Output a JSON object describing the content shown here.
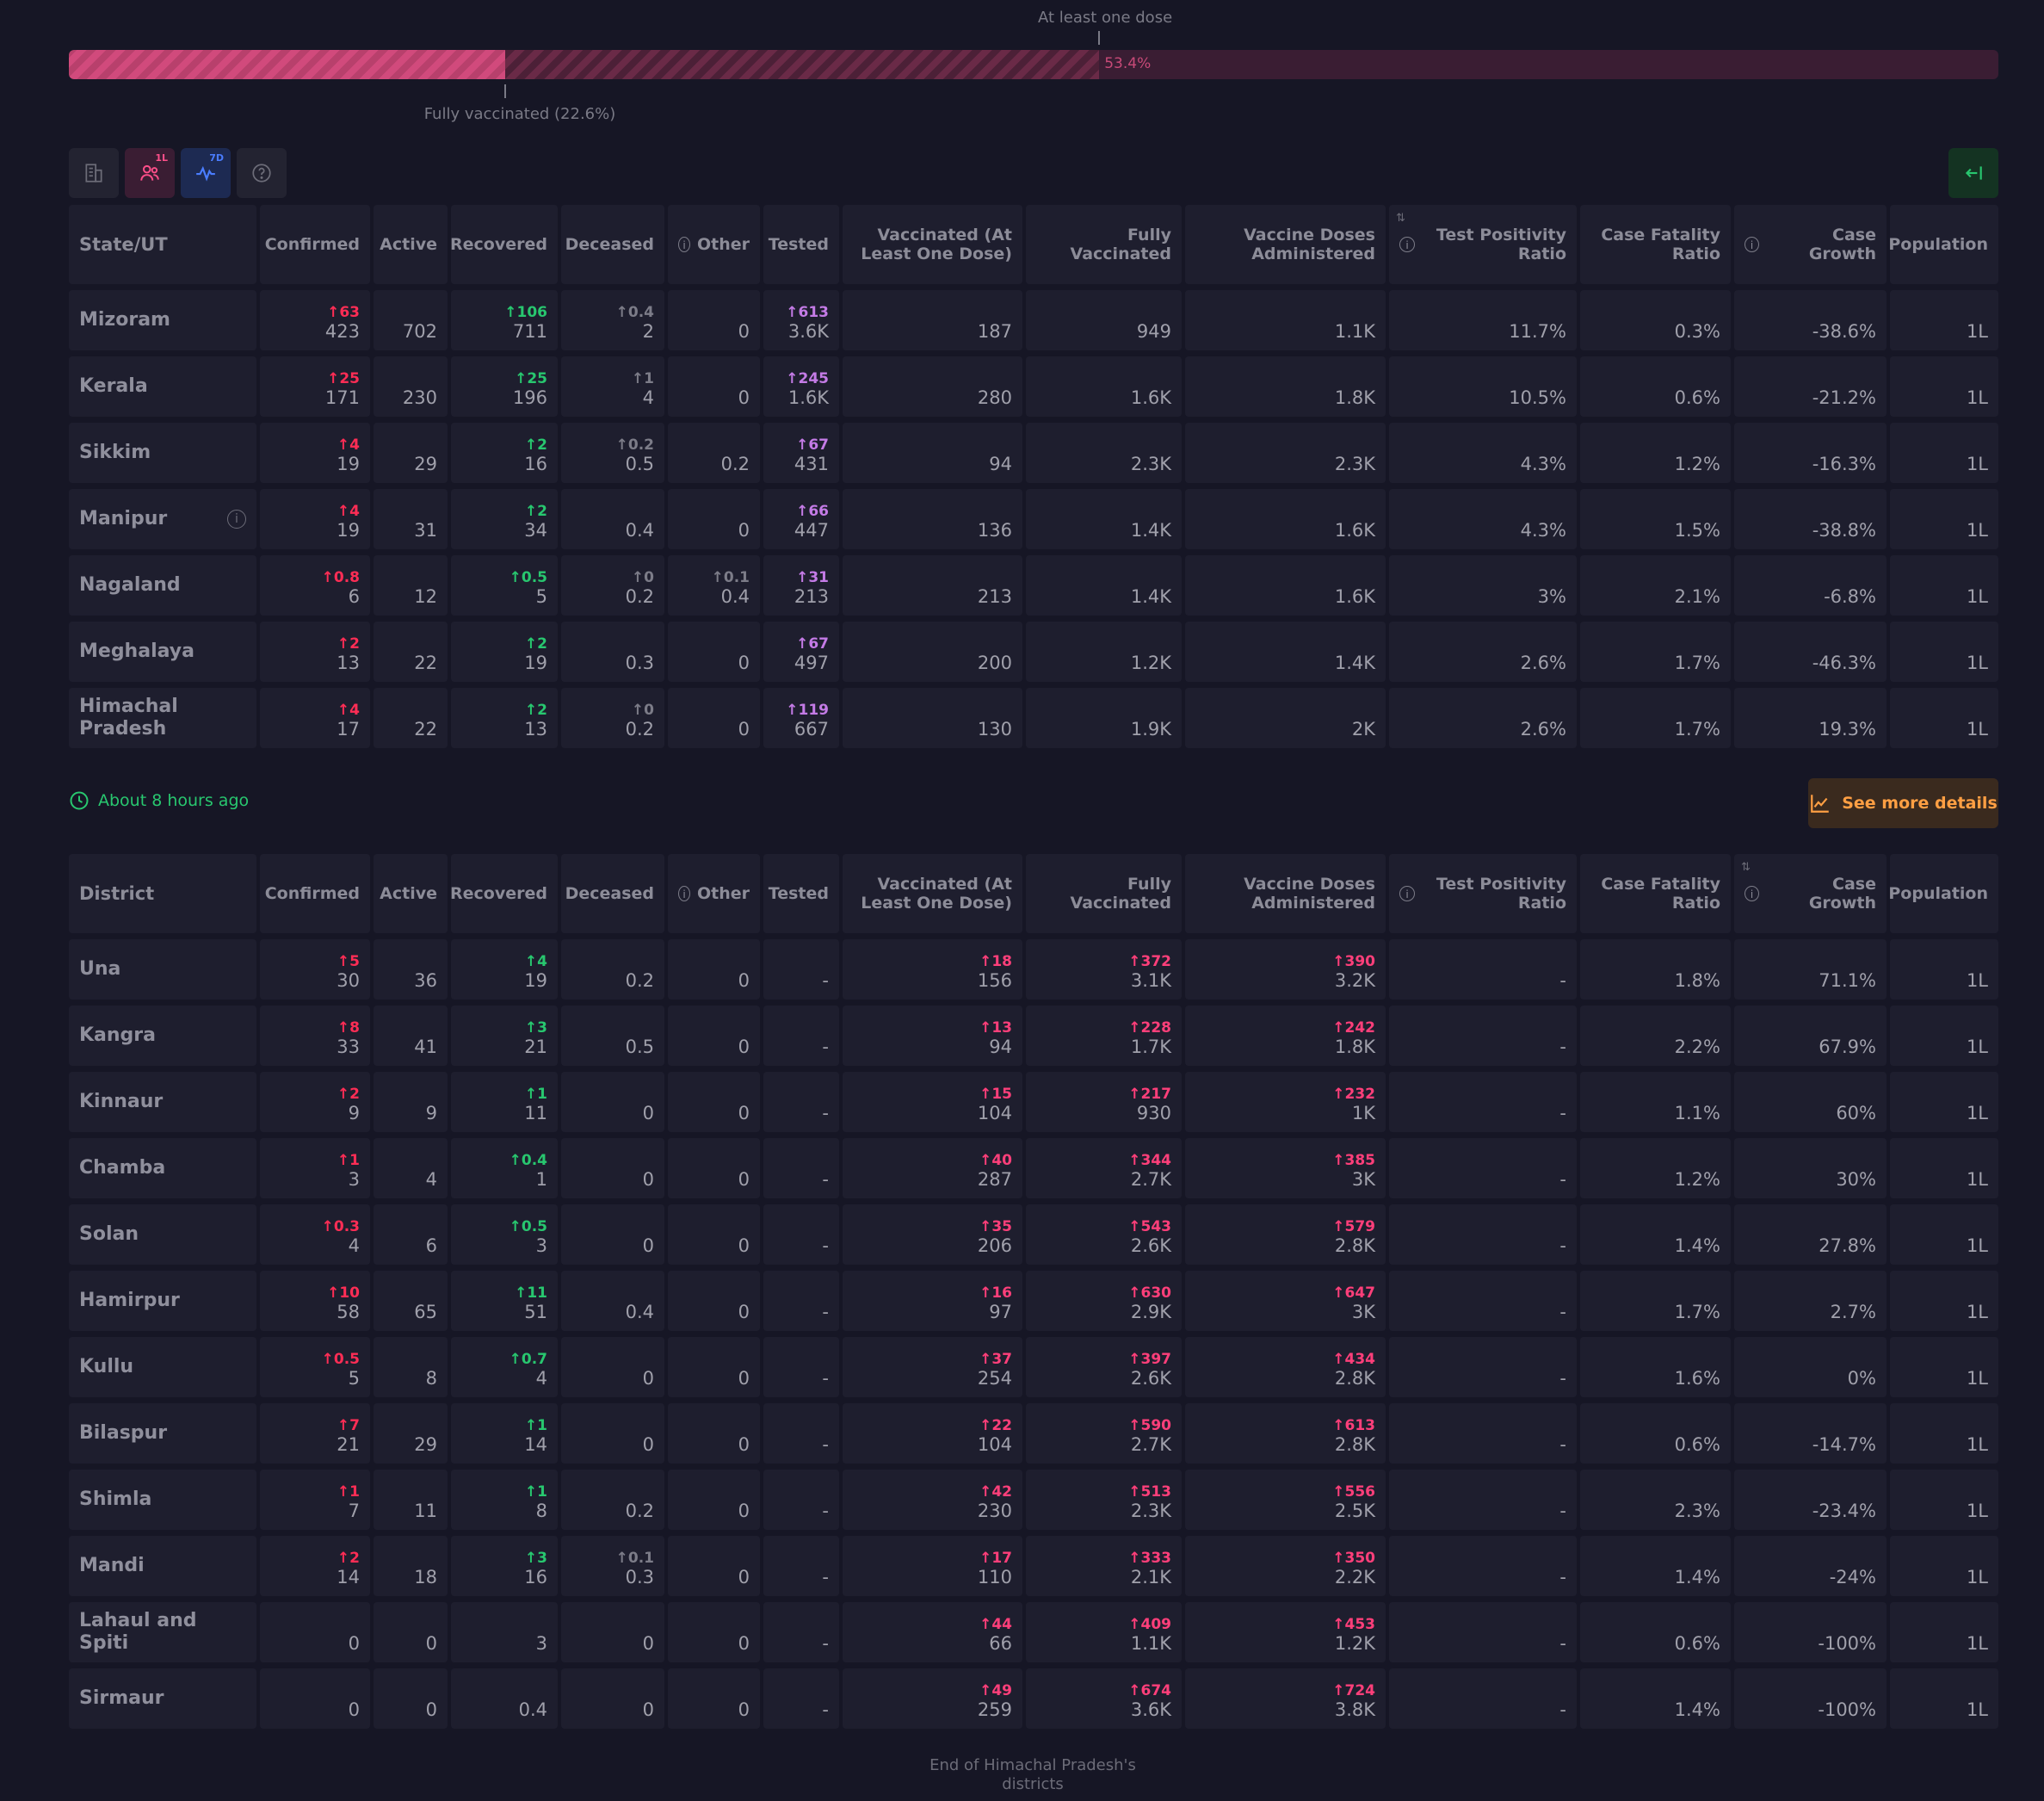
{
  "vaccination": {
    "at_least_one_label": "At least one dose",
    "at_least_one_pct_label": "53.4%",
    "at_least_one_fraction": 0.534,
    "fully_label": "Fully vaccinated (22.6%)",
    "fully_fraction": 0.226
  },
  "toolbar": {
    "population_badge": "1L",
    "trend_badge": "7D"
  },
  "colors": {
    "confirmed": "#ff2d55",
    "recovered": "#28c76f",
    "tested": "#c47be6",
    "vaccinated": "#ff3f7a",
    "background": "#161625"
  },
  "states_table": {
    "columns": [
      "State/UT",
      "Confirmed",
      "Active",
      "Recovered",
      "Deceased",
      "Other",
      "Tested",
      "Vaccinated (At Least One Dose)",
      "Fully Vaccinated",
      "Vaccine Doses Administered",
      "Test Positivity Ratio",
      "Case Fatality Ratio",
      "Case Growth",
      "Population"
    ],
    "rows": [
      {
        "name": "Mizoram",
        "cells": [
          {
            "d": "↑63",
            "v": "423"
          },
          {
            "v": "702"
          },
          {
            "d": "↑106",
            "v": "711"
          },
          {
            "d": "↑0.4",
            "v": "2"
          },
          {
            "v": "0"
          },
          {
            "d": "↑613",
            "v": "3.6K"
          },
          {
            "v": "187"
          },
          {
            "v": "949"
          },
          {
            "v": "1.1K"
          },
          {
            "v": "11.7%"
          },
          {
            "v": "0.3%"
          },
          {
            "v": "-38.6%"
          },
          {
            "v": "1L"
          }
        ]
      },
      {
        "name": "Kerala",
        "cells": [
          {
            "d": "↑25",
            "v": "171"
          },
          {
            "v": "230"
          },
          {
            "d": "↑25",
            "v": "196"
          },
          {
            "d": "↑1",
            "v": "4"
          },
          {
            "v": "0"
          },
          {
            "d": "↑245",
            "v": "1.6K"
          },
          {
            "v": "280"
          },
          {
            "v": "1.6K"
          },
          {
            "v": "1.8K"
          },
          {
            "v": "10.5%"
          },
          {
            "v": "0.6%"
          },
          {
            "v": "-21.2%"
          },
          {
            "v": "1L"
          }
        ]
      },
      {
        "name": "Sikkim",
        "cells": [
          {
            "d": "↑4",
            "v": "19"
          },
          {
            "v": "29"
          },
          {
            "d": "↑2",
            "v": "16"
          },
          {
            "d": "↑0.2",
            "v": "0.5"
          },
          {
            "v": "0.2"
          },
          {
            "d": "↑67",
            "v": "431"
          },
          {
            "v": "94"
          },
          {
            "v": "2.3K"
          },
          {
            "v": "2.3K"
          },
          {
            "v": "4.3%"
          },
          {
            "v": "1.2%"
          },
          {
            "v": "-16.3%"
          },
          {
            "v": "1L"
          }
        ]
      },
      {
        "name": "Manipur",
        "info": true,
        "cells": [
          {
            "d": "↑4",
            "v": "19"
          },
          {
            "v": "31"
          },
          {
            "d": "↑2",
            "v": "34"
          },
          {
            "v": "0.4"
          },
          {
            "v": "0"
          },
          {
            "d": "↑66",
            "v": "447"
          },
          {
            "v": "136"
          },
          {
            "v": "1.4K"
          },
          {
            "v": "1.6K"
          },
          {
            "v": "4.3%"
          },
          {
            "v": "1.5%"
          },
          {
            "v": "-38.8%"
          },
          {
            "v": "1L"
          }
        ]
      },
      {
        "name": "Nagaland",
        "cells": [
          {
            "d": "↑0.8",
            "v": "6"
          },
          {
            "v": "12"
          },
          {
            "d": "↑0.5",
            "v": "5"
          },
          {
            "d": "↑0",
            "v": "0.2"
          },
          {
            "d": "↑0.1",
            "v": "0.4"
          },
          {
            "d": "↑31",
            "v": "213"
          },
          {
            "v": "213"
          },
          {
            "v": "1.4K"
          },
          {
            "v": "1.6K"
          },
          {
            "v": "3%"
          },
          {
            "v": "2.1%"
          },
          {
            "v": "-6.8%"
          },
          {
            "v": "1L"
          }
        ]
      },
      {
        "name": "Meghalaya",
        "cells": [
          {
            "d": "↑2",
            "v": "13"
          },
          {
            "v": "22"
          },
          {
            "d": "↑2",
            "v": "19"
          },
          {
            "v": "0.3"
          },
          {
            "v": "0"
          },
          {
            "d": "↑67",
            "v": "497"
          },
          {
            "v": "200"
          },
          {
            "v": "1.2K"
          },
          {
            "v": "1.4K"
          },
          {
            "v": "2.6%"
          },
          {
            "v": "1.7%"
          },
          {
            "v": "-46.3%"
          },
          {
            "v": "1L"
          }
        ]
      },
      {
        "name": "Himachal Pradesh",
        "cells": [
          {
            "d": "↑4",
            "v": "17"
          },
          {
            "v": "22"
          },
          {
            "d": "↑2",
            "v": "13"
          },
          {
            "d": "↑0",
            "v": "0.2"
          },
          {
            "v": "0"
          },
          {
            "d": "↑119",
            "v": "667"
          },
          {
            "v": "130"
          },
          {
            "v": "1.9K"
          },
          {
            "v": "2K"
          },
          {
            "v": "2.6%"
          },
          {
            "v": "1.7%"
          },
          {
            "v": "19.3%"
          },
          {
            "v": "1L"
          }
        ]
      }
    ]
  },
  "updated": "About 8 hours ago",
  "see_more": "See more details",
  "districts_table": {
    "columns": [
      "District",
      "Confirmed",
      "Active",
      "Recovered",
      "Deceased",
      "Other",
      "Tested",
      "Vaccinated (At Least One Dose)",
      "Fully Vaccinated",
      "Vaccine Doses Administered",
      "Test Positivity Ratio",
      "Case Fatality Ratio",
      "Case Growth",
      "Population"
    ],
    "rows": [
      {
        "name": "Una",
        "cells": [
          {
            "d": "↑5",
            "v": "30"
          },
          {
            "v": "36"
          },
          {
            "d": "↑4",
            "v": "19"
          },
          {
            "v": "0.2"
          },
          {
            "v": "0"
          },
          {
            "v": "-"
          },
          {
            "d": "↑18",
            "v": "156"
          },
          {
            "d": "↑372",
            "v": "3.1K"
          },
          {
            "d": "↑390",
            "v": "3.2K"
          },
          {
            "v": "-"
          },
          {
            "v": "1.8%"
          },
          {
            "v": "71.1%"
          },
          {
            "v": "1L"
          }
        ]
      },
      {
        "name": "Kangra",
        "cells": [
          {
            "d": "↑8",
            "v": "33"
          },
          {
            "v": "41"
          },
          {
            "d": "↑3",
            "v": "21"
          },
          {
            "v": "0.5"
          },
          {
            "v": "0"
          },
          {
            "v": "-"
          },
          {
            "d": "↑13",
            "v": "94"
          },
          {
            "d": "↑228",
            "v": "1.7K"
          },
          {
            "d": "↑242",
            "v": "1.8K"
          },
          {
            "v": "-"
          },
          {
            "v": "2.2%"
          },
          {
            "v": "67.9%"
          },
          {
            "v": "1L"
          }
        ]
      },
      {
        "name": "Kinnaur",
        "cells": [
          {
            "d": "↑2",
            "v": "9"
          },
          {
            "v": "9"
          },
          {
            "d": "↑1",
            "v": "11"
          },
          {
            "v": "0"
          },
          {
            "v": "0"
          },
          {
            "v": "-"
          },
          {
            "d": "↑15",
            "v": "104"
          },
          {
            "d": "↑217",
            "v": "930"
          },
          {
            "d": "↑232",
            "v": "1K"
          },
          {
            "v": "-"
          },
          {
            "v": "1.1%"
          },
          {
            "v": "60%"
          },
          {
            "v": "1L"
          }
        ]
      },
      {
        "name": "Chamba",
        "cells": [
          {
            "d": "↑1",
            "v": "3"
          },
          {
            "v": "4"
          },
          {
            "d": "↑0.4",
            "v": "1"
          },
          {
            "v": "0"
          },
          {
            "v": "0"
          },
          {
            "v": "-"
          },
          {
            "d": "↑40",
            "v": "287"
          },
          {
            "d": "↑344",
            "v": "2.7K"
          },
          {
            "d": "↑385",
            "v": "3K"
          },
          {
            "v": "-"
          },
          {
            "v": "1.2%"
          },
          {
            "v": "30%"
          },
          {
            "v": "1L"
          }
        ]
      },
      {
        "name": "Solan",
        "cells": [
          {
            "d": "↑0.3",
            "v": "4"
          },
          {
            "v": "6"
          },
          {
            "d": "↑0.5",
            "v": "3"
          },
          {
            "v": "0"
          },
          {
            "v": "0"
          },
          {
            "v": "-"
          },
          {
            "d": "↑35",
            "v": "206"
          },
          {
            "d": "↑543",
            "v": "2.6K"
          },
          {
            "d": "↑579",
            "v": "2.8K"
          },
          {
            "v": "-"
          },
          {
            "v": "1.4%"
          },
          {
            "v": "27.8%"
          },
          {
            "v": "1L"
          }
        ]
      },
      {
        "name": "Hamirpur",
        "cells": [
          {
            "d": "↑10",
            "v": "58"
          },
          {
            "v": "65"
          },
          {
            "d": "↑11",
            "v": "51"
          },
          {
            "v": "0.4"
          },
          {
            "v": "0"
          },
          {
            "v": "-"
          },
          {
            "d": "↑16",
            "v": "97"
          },
          {
            "d": "↑630",
            "v": "2.9K"
          },
          {
            "d": "↑647",
            "v": "3K"
          },
          {
            "v": "-"
          },
          {
            "v": "1.7%"
          },
          {
            "v": "2.7%"
          },
          {
            "v": "1L"
          }
        ]
      },
      {
        "name": "Kullu",
        "cells": [
          {
            "d": "↑0.5",
            "v": "5"
          },
          {
            "v": "8"
          },
          {
            "d": "↑0.7",
            "v": "4"
          },
          {
            "v": "0"
          },
          {
            "v": "0"
          },
          {
            "v": "-"
          },
          {
            "d": "↑37",
            "v": "254"
          },
          {
            "d": "↑397",
            "v": "2.6K"
          },
          {
            "d": "↑434",
            "v": "2.8K"
          },
          {
            "v": "-"
          },
          {
            "v": "1.6%"
          },
          {
            "v": "0%"
          },
          {
            "v": "1L"
          }
        ]
      },
      {
        "name": "Bilaspur",
        "cells": [
          {
            "d": "↑7",
            "v": "21"
          },
          {
            "v": "29"
          },
          {
            "d": "↑1",
            "v": "14"
          },
          {
            "v": "0"
          },
          {
            "v": "0"
          },
          {
            "v": "-"
          },
          {
            "d": "↑22",
            "v": "104"
          },
          {
            "d": "↑590",
            "v": "2.7K"
          },
          {
            "d": "↑613",
            "v": "2.8K"
          },
          {
            "v": "-"
          },
          {
            "v": "0.6%"
          },
          {
            "v": "-14.7%"
          },
          {
            "v": "1L"
          }
        ]
      },
      {
        "name": "Shimla",
        "cells": [
          {
            "d": "↑1",
            "v": "7"
          },
          {
            "v": "11"
          },
          {
            "d": "↑1",
            "v": "8"
          },
          {
            "v": "0.2"
          },
          {
            "v": "0"
          },
          {
            "v": "-"
          },
          {
            "d": "↑42",
            "v": "230"
          },
          {
            "d": "↑513",
            "v": "2.3K"
          },
          {
            "d": "↑556",
            "v": "2.5K"
          },
          {
            "v": "-"
          },
          {
            "v": "2.3%"
          },
          {
            "v": "-23.4%"
          },
          {
            "v": "1L"
          }
        ]
      },
      {
        "name": "Mandi",
        "cells": [
          {
            "d": "↑2",
            "v": "14"
          },
          {
            "v": "18"
          },
          {
            "d": "↑3",
            "v": "16"
          },
          {
            "d": "↑0.1",
            "v": "0.3"
          },
          {
            "v": "0"
          },
          {
            "v": "-"
          },
          {
            "d": "↑17",
            "v": "110"
          },
          {
            "d": "↑333",
            "v": "2.1K"
          },
          {
            "d": "↑350",
            "v": "2.2K"
          },
          {
            "v": "-"
          },
          {
            "v": "1.4%"
          },
          {
            "v": "-24%"
          },
          {
            "v": "1L"
          }
        ]
      },
      {
        "name": "Lahaul and Spiti",
        "cells": [
          {
            "v": "0"
          },
          {
            "v": "0"
          },
          {
            "v": "3"
          },
          {
            "v": "0"
          },
          {
            "v": "0"
          },
          {
            "v": "-"
          },
          {
            "d": "↑44",
            "v": "66"
          },
          {
            "d": "↑409",
            "v": "1.1K"
          },
          {
            "d": "↑453",
            "v": "1.2K"
          },
          {
            "v": "-"
          },
          {
            "v": "0.6%"
          },
          {
            "v": "-100%"
          },
          {
            "v": "1L"
          }
        ]
      },
      {
        "name": "Sirmaur",
        "cells": [
          {
            "v": "0"
          },
          {
            "v": "0"
          },
          {
            "v": "0.4"
          },
          {
            "v": "0"
          },
          {
            "v": "0"
          },
          {
            "v": "-"
          },
          {
            "d": "↑49",
            "v": "259"
          },
          {
            "d": "↑674",
            "v": "3.6K"
          },
          {
            "d": "↑724",
            "v": "3.8K"
          },
          {
            "v": "-"
          },
          {
            "v": "1.4%"
          },
          {
            "v": "-100%"
          },
          {
            "v": "1L"
          }
        ]
      }
    ]
  },
  "footer": "End of Himachal Pradesh's districts"
}
